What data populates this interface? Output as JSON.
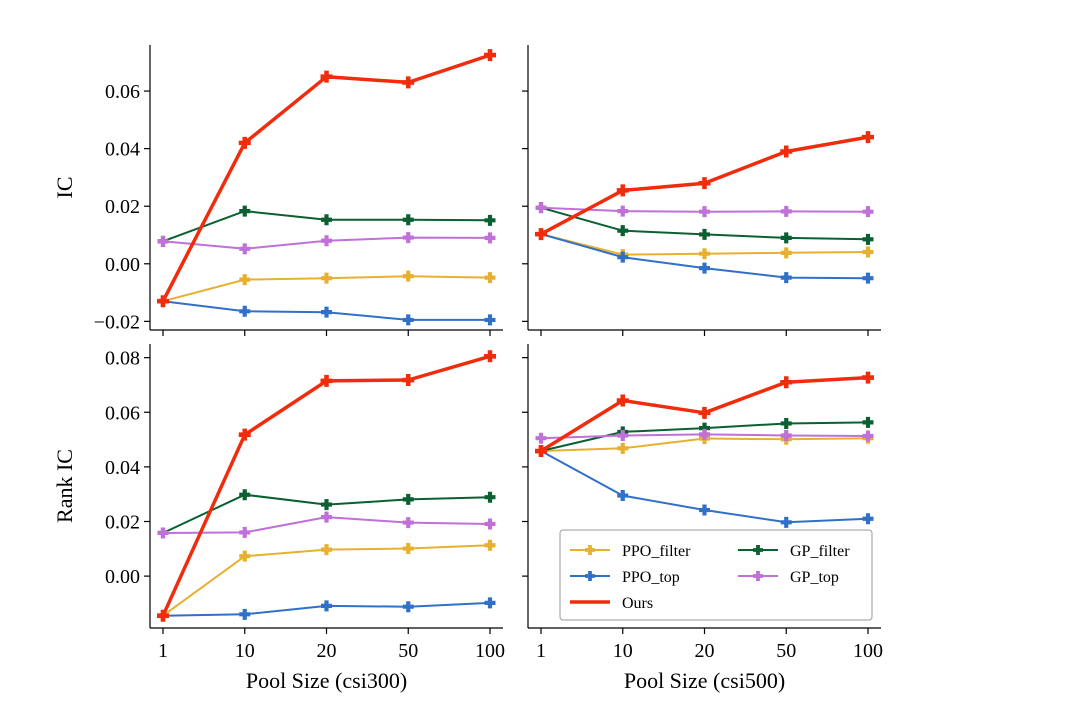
{
  "chart_data": {
    "type": "line",
    "x_categories": [
      "1",
      "10",
      "20",
      "50",
      "100"
    ],
    "x_positions": [
      0,
      1,
      2,
      3,
      4
    ],
    "y_tick_format": "signed_2dp",
    "legend": {
      "placement": "lower-right of bottom-right panel",
      "entries": [
        "PPO_filter",
        "GP_filter",
        "PPO_top",
        "GP_top",
        "Ours"
      ]
    },
    "series_styles": [
      {
        "name": "PPO_filter",
        "color": "#e8b030",
        "width": 2
      },
      {
        "name": "PPO_top",
        "color": "#3070c8",
        "width": 2
      },
      {
        "name": "GP_filter",
        "color": "#0a6030",
        "width": 2
      },
      {
        "name": "GP_top",
        "color": "#c070d8",
        "width": 2
      },
      {
        "name": "Ours",
        "color": "#f02c0c",
        "width": 3.5
      }
    ],
    "panels": [
      {
        "id": "ic-csi300",
        "ylabel": "IC",
        "xlabel": "",
        "ylim": [
          -0.023,
          0.076
        ],
        "yticks": [
          -0.02,
          0.0,
          0.02,
          0.04,
          0.06
        ],
        "show_y_ticklabels": true,
        "show_x_ticklabels": false,
        "series": [
          {
            "name": "PPO_filter",
            "values": [
              -0.013,
              -0.0055,
              -0.005,
              -0.0043,
              -0.0048
            ]
          },
          {
            "name": "PPO_top",
            "values": [
              -0.013,
              -0.0165,
              -0.0168,
              -0.0195,
              -0.0195
            ]
          },
          {
            "name": "GP_filter",
            "values": [
              0.0078,
              0.0183,
              0.0153,
              0.0153,
              0.0151
            ]
          },
          {
            "name": "GP_top",
            "values": [
              0.0078,
              0.0052,
              0.008,
              0.0091,
              0.009
            ]
          },
          {
            "name": "Ours",
            "values": [
              -0.013,
              0.042,
              0.065,
              0.063,
              0.0725
            ]
          }
        ]
      },
      {
        "id": "ic-csi500",
        "ylabel": "",
        "xlabel": "",
        "ylim": [
          -0.023,
          0.076
        ],
        "yticks": [
          -0.02,
          0.0,
          0.02,
          0.04,
          0.06
        ],
        "show_y_ticklabels": false,
        "show_x_ticklabels": false,
        "series": [
          {
            "name": "PPO_filter",
            "values": [
              0.0103,
              0.0032,
              0.0035,
              0.0038,
              0.0041
            ]
          },
          {
            "name": "PPO_top",
            "values": [
              0.0103,
              0.0023,
              -0.0015,
              -0.0048,
              -0.005
            ]
          },
          {
            "name": "GP_filter",
            "values": [
              0.0195,
              0.0115,
              0.0102,
              0.009,
              0.0085
            ]
          },
          {
            "name": "GP_top",
            "values": [
              0.0195,
              0.0183,
              0.0181,
              0.0182,
              0.0181
            ]
          },
          {
            "name": "Ours",
            "values": [
              0.0103,
              0.0255,
              0.028,
              0.039,
              0.044
            ]
          }
        ]
      },
      {
        "id": "rankic-csi300",
        "ylabel": "Rank IC",
        "xlabel": "Pool Size (csi300)",
        "ylim": [
          -0.019,
          0.085
        ],
        "yticks": [
          0.0,
          0.02,
          0.04,
          0.06,
          0.08
        ],
        "show_y_ticklabels": true,
        "show_x_ticklabels": true,
        "series": [
          {
            "name": "PPO_filter",
            "values": [
              -0.0145,
              0.0073,
              0.0097,
              0.0101,
              0.0113
            ]
          },
          {
            "name": "PPO_top",
            "values": [
              -0.0145,
              -0.014,
              -0.0109,
              -0.0112,
              -0.0098
            ]
          },
          {
            "name": "GP_filter",
            "values": [
              0.0158,
              0.0298,
              0.0262,
              0.0281,
              0.0289
            ]
          },
          {
            "name": "GP_top",
            "values": [
              0.0158,
              0.016,
              0.0216,
              0.0196,
              0.0191
            ]
          },
          {
            "name": "Ours",
            "values": [
              -0.0145,
              0.0518,
              0.0715,
              0.0718,
              0.0805
            ]
          }
        ]
      },
      {
        "id": "rankic-csi500",
        "ylabel": "",
        "xlabel": "Pool Size (csi500)",
        "ylim": [
          -0.019,
          0.085
        ],
        "yticks": [
          0.0,
          0.02,
          0.04,
          0.06,
          0.08
        ],
        "show_y_ticklabels": false,
        "show_x_ticklabels": true,
        "series": [
          {
            "name": "PPO_filter",
            "values": [
              0.0458,
              0.0468,
              0.0504,
              0.0501,
              0.0505
            ]
          },
          {
            "name": "PPO_top",
            "values": [
              0.0458,
              0.0295,
              0.0242,
              0.0197,
              0.021
            ]
          },
          {
            "name": "GP_filter",
            "values": [
              0.0458,
              0.0528,
              0.0542,
              0.0559,
              0.0563
            ]
          },
          {
            "name": "GP_top",
            "values": [
              0.0505,
              0.0515,
              0.0519,
              0.0515,
              0.0513
            ]
          },
          {
            "name": "Ours",
            "values": [
              0.0458,
              0.0643,
              0.0598,
              0.071,
              0.0727
            ]
          }
        ]
      }
    ]
  }
}
